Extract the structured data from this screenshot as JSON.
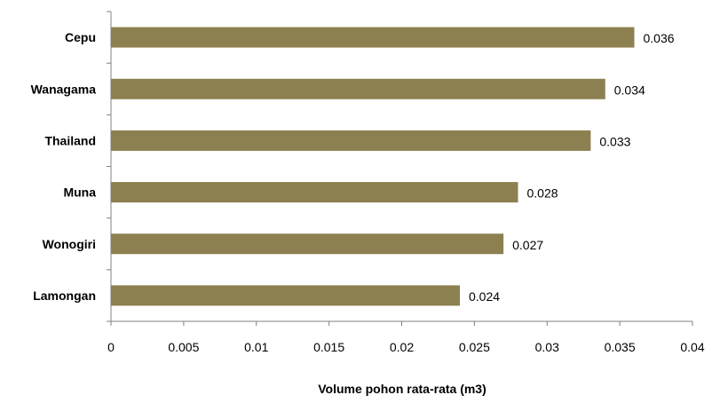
{
  "chart_data": {
    "type": "bar",
    "orientation": "horizontal",
    "categories": [
      "Cepu",
      "Wanagama",
      "Thailand",
      "Muna",
      "Wonogiri",
      "Lamongan"
    ],
    "values": [
      0.036,
      0.034,
      0.033,
      0.028,
      0.027,
      0.024
    ],
    "value_labels": [
      "0.036",
      "0.034",
      "0.033",
      "0.028",
      "0.027",
      "0.024"
    ],
    "title": "",
    "xlabel": "Volume pohon rata-rata (m3)",
    "ylabel": "",
    "xlim": [
      0,
      0.04
    ],
    "x_ticks": [
      0,
      0.005,
      0.01,
      0.015,
      0.02,
      0.025,
      0.03,
      0.035,
      0.04
    ],
    "x_tick_labels": [
      "0",
      "0.005",
      "0.01",
      "0.015",
      "0.02",
      "0.025",
      "0.03",
      "0.035",
      "0.04"
    ],
    "grid": false,
    "legend": "none",
    "bar_color": "#8C8050",
    "axis_color": "#808080"
  }
}
